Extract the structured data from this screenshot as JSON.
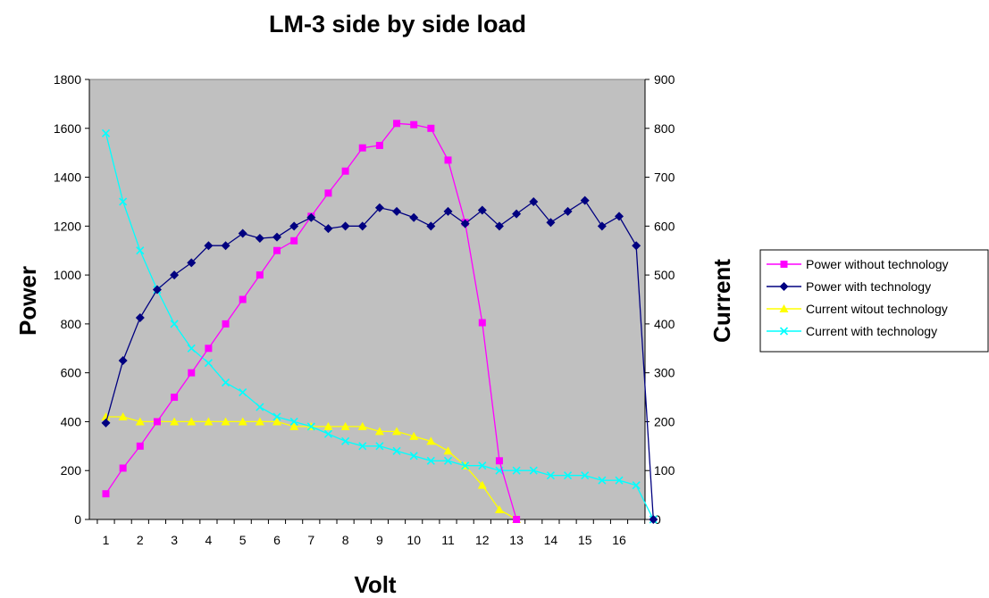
{
  "chart_data": {
    "type": "line",
    "title": "LM-3 side by side load",
    "xlabel": "Volt",
    "ylabel_left": "Power",
    "ylabel_right": "Current",
    "x_ticks": [
      "1",
      "2",
      "3",
      "4",
      "5",
      "6",
      "7",
      "8",
      "9",
      "10",
      "11",
      "12",
      "13",
      "14",
      "15",
      "16"
    ],
    "y_left": {
      "min": 0,
      "max": 1800,
      "step": 200,
      "ticks": [
        "0",
        "200",
        "400",
        "600",
        "800",
        "1000",
        "1200",
        "1400",
        "1600",
        "1800"
      ]
    },
    "y_right": {
      "min": 0,
      "max": 900,
      "step": 100,
      "ticks": [
        "0",
        "100",
        "200",
        "300",
        "400",
        "500",
        "600",
        "700",
        "800",
        "900"
      ]
    },
    "grid": false,
    "legend_position": "right",
    "plot_background": "#c0c0c0",
    "series": [
      {
        "name": "Power without technology",
        "axis": "left",
        "color": "#ff00ff",
        "marker": "square",
        "x": [
          1,
          1.5,
          2,
          2.5,
          3,
          3.5,
          4,
          4.5,
          5,
          5.5,
          6,
          6.5,
          7,
          7.5,
          8,
          8.5,
          9,
          9.5,
          10,
          10.5,
          11,
          11.5,
          12,
          12.5,
          13
        ],
        "values": [
          105,
          210,
          300,
          400,
          500,
          600,
          700,
          800,
          900,
          1000,
          1100,
          1140,
          1240,
          1335,
          1425,
          1520,
          1530,
          1620,
          1615,
          1600,
          1470,
          1215,
          805,
          240,
          0
        ]
      },
      {
        "name": "Power with technology",
        "axis": "left",
        "color": "#000080",
        "marker": "diamond",
        "x": [
          1,
          1.5,
          2,
          2.5,
          3,
          3.5,
          4,
          4.5,
          5,
          5.5,
          6,
          6.5,
          7,
          7.5,
          8,
          8.5,
          9,
          9.5,
          10,
          10.5,
          11,
          11.5,
          12,
          12.5,
          13,
          13.5,
          14,
          14.5,
          15,
          15.5,
          16,
          16.5,
          17
        ],
        "values": [
          395,
          650,
          825,
          940,
          1000,
          1050,
          1120,
          1120,
          1170,
          1150,
          1155,
          1200,
          1235,
          1190,
          1200,
          1200,
          1275,
          1260,
          1235,
          1200,
          1260,
          1210,
          1265,
          1200,
          1250,
          1300,
          1215,
          1260,
          1305,
          1200,
          1240,
          1120,
          0
        ]
      },
      {
        "name": "Current witout technology",
        "axis": "right",
        "color": "#ffff00",
        "marker": "triangle",
        "x": [
          1,
          1.5,
          2,
          2.5,
          3,
          3.5,
          4,
          4.5,
          5,
          5.5,
          6,
          6.5,
          7,
          7.5,
          8,
          8.5,
          9,
          9.5,
          10,
          10.5,
          11,
          11.5,
          12,
          12.5,
          13
        ],
        "values": [
          210,
          210,
          200,
          200,
          200,
          200,
          200,
          200,
          200,
          200,
          200,
          190,
          190,
          190,
          190,
          190,
          180,
          180,
          170,
          160,
          140,
          110,
          70,
          20,
          0
        ]
      },
      {
        "name": "Current with technology",
        "axis": "right",
        "color": "#00ffff",
        "marker": "x",
        "x": [
          1,
          1.5,
          2,
          2.5,
          3,
          3.5,
          4,
          4.5,
          5,
          5.5,
          6,
          6.5,
          7,
          7.5,
          8,
          8.5,
          9,
          9.5,
          10,
          10.5,
          11,
          11.5,
          12,
          12.5,
          13,
          13.5,
          14,
          14.5,
          15,
          15.5,
          16,
          16.5,
          17
        ],
        "values": [
          790,
          650,
          550,
          470,
          400,
          350,
          320,
          280,
          260,
          230,
          210,
          200,
          190,
          175,
          160,
          150,
          150,
          140,
          130,
          120,
          120,
          110,
          110,
          100,
          100,
          100,
          90,
          90,
          90,
          80,
          80,
          70,
          0
        ]
      }
    ]
  }
}
